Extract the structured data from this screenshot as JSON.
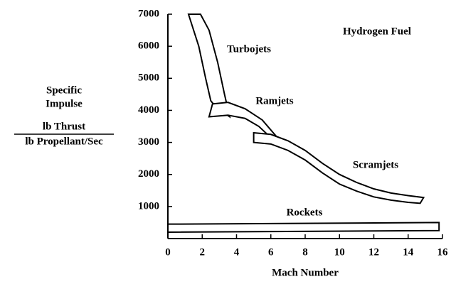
{
  "chart_data": {
    "type": "area",
    "annotation": "Hydrogen Fuel",
    "xlabel": "Mach Number",
    "ylabel": [
      "Specific",
      "Impulse"
    ],
    "ylabel_units": {
      "numerator": "lb Thrust",
      "denominator": "lb Propellant/Sec"
    },
    "xlim": [
      0,
      16
    ],
    "xticks": [
      0,
      2,
      4,
      6,
      8,
      10,
      12,
      14,
      16
    ],
    "ylim": [
      0,
      7000
    ],
    "yticks": [
      1000,
      2000,
      3000,
      4000,
      5000,
      6000,
      7000
    ],
    "series": [
      {
        "name": "Turbojets",
        "color": "#ffffff",
        "x": [
          1.2,
          1.8,
          2.2,
          2.5,
          2.8,
          3.6,
          3.3,
          2.9,
          2.4,
          1.9
        ],
        "values": [
          7000,
          6000,
          5000,
          4300,
          4100,
          3800,
          4500,
          5500,
          6500,
          7000
        ]
      },
      {
        "name": "Ramjets",
        "color": "#ffffff",
        "x": [
          2.6,
          3.5,
          4.5,
          5.5,
          6.3,
          6.0,
          5.3,
          4.5,
          3.5,
          2.4
        ],
        "values": [
          4200,
          4250,
          4050,
          3700,
          3200,
          3150,
          3500,
          3750,
          3850,
          3800
        ]
      },
      {
        "name": "Scramjets",
        "color": "#ffffff",
        "x": [
          5,
          6,
          7,
          8,
          9,
          10,
          11,
          12,
          13,
          14,
          14.9,
          14.7,
          14,
          13,
          12,
          11,
          10,
          9,
          8,
          7,
          6,
          5
        ],
        "values": [
          3300,
          3250,
          3050,
          2750,
          2350,
          2000,
          1750,
          1550,
          1420,
          1340,
          1280,
          1100,
          1130,
          1200,
          1300,
          1480,
          1700,
          2050,
          2450,
          2750,
          2950,
          3000
        ]
      },
      {
        "name": "Rockets",
        "color": "#ffffff",
        "x": [
          0,
          15.8,
          15.8,
          0
        ],
        "values": [
          450,
          500,
          250,
          200
        ]
      }
    ]
  }
}
